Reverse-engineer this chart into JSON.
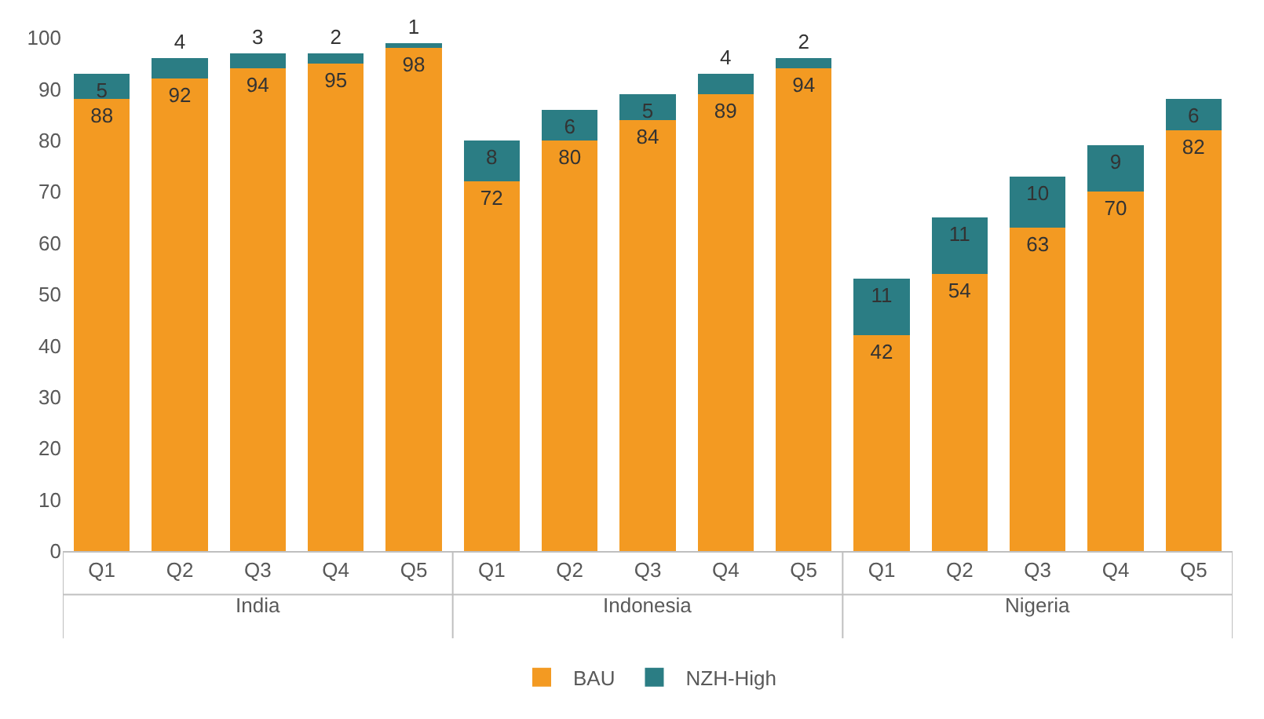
{
  "chart_data": {
    "type": "bar",
    "stacked": true,
    "categories": [
      "Q1",
      "Q2",
      "Q3",
      "Q4",
      "Q5",
      "Q1",
      "Q2",
      "Q3",
      "Q4",
      "Q5",
      "Q1",
      "Q2",
      "Q3",
      "Q4",
      "Q5"
    ],
    "annotations": [
      "India",
      "Indonesia",
      "Nigeria"
    ],
    "series": [
      {
        "name": "BAU",
        "color": "#f39a22",
        "values": [
          88,
          92,
          94,
          95,
          98,
          72,
          80,
          84,
          89,
          94,
          42,
          54,
          63,
          70,
          82
        ]
      },
      {
        "name": "NZH-High",
        "color": "#2b7d84",
        "values": [
          5,
          4,
          3,
          2,
          1,
          8,
          6,
          5,
          4,
          2,
          11,
          11,
          10,
          9,
          6
        ]
      }
    ],
    "ylim": [
      0,
      100
    ],
    "yticks": [
      0,
      10,
      20,
      30,
      40,
      50,
      60,
      70,
      80,
      90,
      100
    ],
    "grid": false,
    "legend": "bottom",
    "data_labels": true
  }
}
